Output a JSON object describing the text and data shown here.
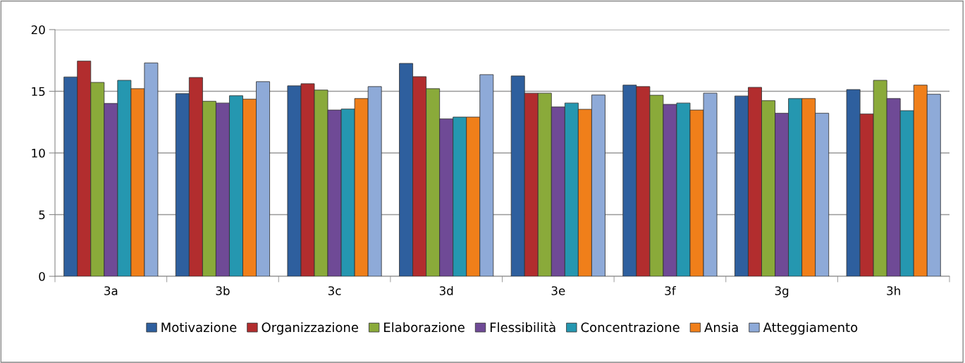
{
  "chart_data": {
    "type": "bar",
    "categories": [
      "3a",
      "3b",
      "3c",
      "3d",
      "3e",
      "3f",
      "3g",
      "3h"
    ],
    "series": [
      {
        "name": "Motivazione",
        "color": "#2e5f9e",
        "values": [
          16.16,
          14.81,
          15.44,
          17.26,
          16.24,
          15.5,
          14.62,
          15.14
        ]
      },
      {
        "name": "Organizzazione",
        "color": "#b22d2e",
        "values": [
          17.45,
          16.12,
          15.61,
          16.18,
          14.85,
          15.38,
          15.32,
          13.16
        ]
      },
      {
        "name": "Elaborazione",
        "color": "#8aaa3a",
        "values": [
          15.72,
          14.19,
          15.1,
          15.21,
          14.85,
          14.68,
          14.24,
          15.89
        ]
      },
      {
        "name": "Flessibilità",
        "color": "#6f4a96",
        "values": [
          14.01,
          14.05,
          13.48,
          12.76,
          13.73,
          13.94,
          13.22,
          14.41
        ]
      },
      {
        "name": "Concentrazione",
        "color": "#2597b0",
        "values": [
          15.89,
          14.64,
          13.56,
          12.91,
          14.05,
          14.05,
          14.41,
          13.43
        ]
      },
      {
        "name": "Ansia",
        "color": "#f07f1a",
        "values": [
          15.21,
          14.36,
          14.41,
          12.91,
          13.54,
          13.48,
          14.41,
          15.5
        ]
      },
      {
        "name": "Atteggiamento",
        "color": "#8eaad8",
        "values": [
          17.3,
          15.78,
          15.38,
          16.35,
          14.7,
          14.85,
          13.22,
          14.76
        ]
      }
    ],
    "ylim": [
      0,
      20
    ],
    "yticks": [
      0,
      5,
      10,
      15,
      20
    ],
    "grid": "y",
    "legend": "bottom"
  }
}
